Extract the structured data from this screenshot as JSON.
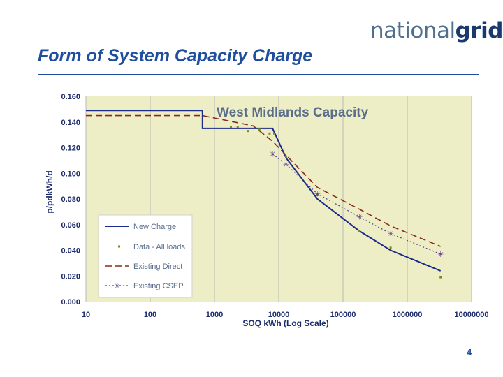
{
  "logo": {
    "part1": "national",
    "part2": "grid"
  },
  "slide": {
    "title": "Form of System Capacity Charge",
    "page_number": "4"
  },
  "colors": {
    "title": "#1f4e9e",
    "new_charge": "#1c2a8c",
    "data_all_loads": "#7a8a1e",
    "existing_direct": "#8a2a1a",
    "existing_csep": "#5a3a8c",
    "plot_bg": "#eeeec6"
  },
  "chart_data": {
    "type": "line",
    "title": "West Midlands Capacity",
    "xlabel": "SOQ kWh (Log Scale)",
    "ylabel": "p/pdkWh/d",
    "x_scale": "log",
    "xlim": [
      10,
      10000000
    ],
    "ylim": [
      0,
      0.16
    ],
    "x_ticks": [
      "10",
      "100",
      "1000",
      "10000",
      "100000",
      "1000000",
      "10000000"
    ],
    "y_ticks": [
      "0.000",
      "0.020",
      "0.040",
      "0.060",
      "0.080",
      "0.100",
      "0.120",
      "0.140",
      "0.160"
    ],
    "grid": "vertical",
    "legend_position": "bottom-left",
    "series": [
      {
        "name": "New Charge",
        "style": "solid",
        "x": [
          10,
          650,
          650,
          8000,
          13000,
          40000,
          180000,
          550000,
          3300000
        ],
        "y": [
          0.149,
          0.149,
          0.135,
          0.135,
          0.112,
          0.08,
          0.055,
          0.04,
          0.024
        ]
      },
      {
        "name": "Data - All loads",
        "style": "markers",
        "x": [
          1800,
          2300,
          3300,
          5000,
          7200,
          8500,
          13000,
          40000,
          180000,
          550000,
          3300000
        ],
        "y": [
          0.136,
          0.136,
          0.133,
          0.134,
          0.131,
          0.131,
          0.113,
          0.083,
          0.055,
          0.042,
          0.019
        ]
      },
      {
        "name": "Existing Direct",
        "style": "dashed",
        "x": [
          10,
          650,
          4000,
          8000,
          40000,
          180000,
          550000,
          3300000
        ],
        "y": [
          0.145,
          0.145,
          0.137,
          0.125,
          0.089,
          0.072,
          0.059,
          0.043
        ]
      },
      {
        "name": "Existing CSEP",
        "style": "dotted-stars",
        "x": [
          8000,
          13000,
          40000,
          180000,
          550000,
          3300000
        ],
        "y": [
          0.115,
          0.107,
          0.084,
          0.066,
          0.053,
          0.037
        ]
      }
    ]
  }
}
